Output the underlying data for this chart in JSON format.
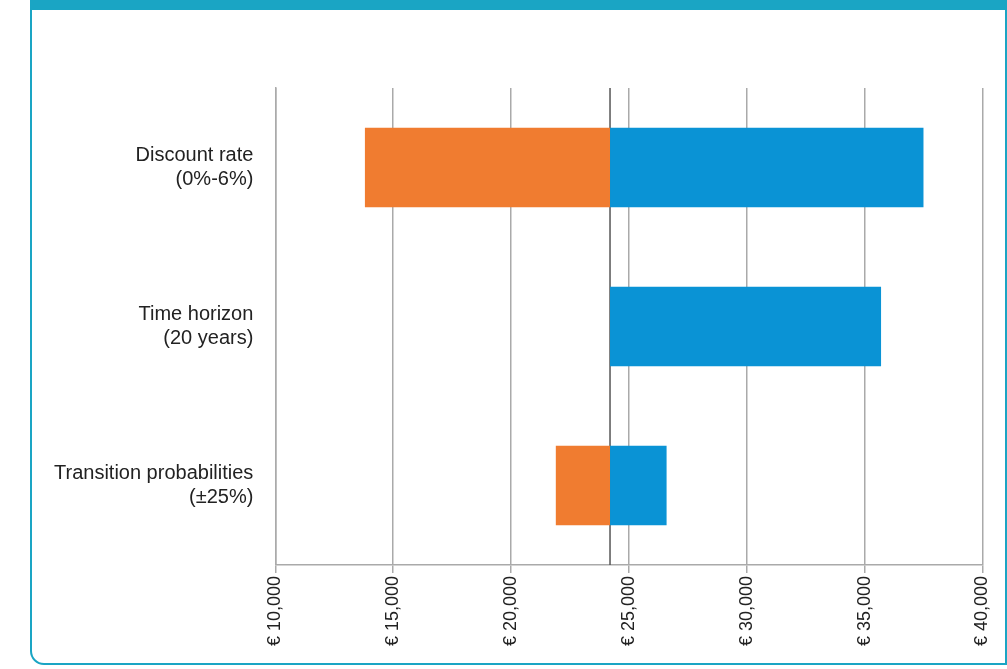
{
  "chart_data": {
    "type": "bar",
    "orientation": "horizontal",
    "categories": [
      "Discount rate (0%-6%)",
      "Time horizon (20 years)",
      "Transition probabilities (±25%)"
    ],
    "series": [
      {
        "color": "#f07c30",
        "base": [
          24200,
          null,
          24200
        ],
        "values": [
          -10400,
          null,
          -2300
        ]
      },
      {
        "color": "#0a93d5",
        "base": [
          24200,
          24200,
          24200
        ],
        "values": [
          13300,
          11500,
          2400
        ]
      }
    ],
    "xlim": [
      10000,
      40000
    ],
    "xticks": [
      {
        "value": 10000,
        "label": "€ 10,000"
      },
      {
        "value": 15000,
        "label": "€ 15,000"
      },
      {
        "value": 20000,
        "label": "€ 20,000"
      },
      {
        "value": 25000,
        "label": "€ 25,000"
      },
      {
        "value": 30000,
        "label": "€ 30,000"
      },
      {
        "value": 35000,
        "label": "€ 35,000"
      },
      {
        "value": 40000,
        "label": "€ 40,000"
      }
    ],
    "ref_lines": [
      {
        "axis": "x",
        "value": 24200,
        "color": "#555555"
      }
    ],
    "grid": "x",
    "legend": false
  }
}
